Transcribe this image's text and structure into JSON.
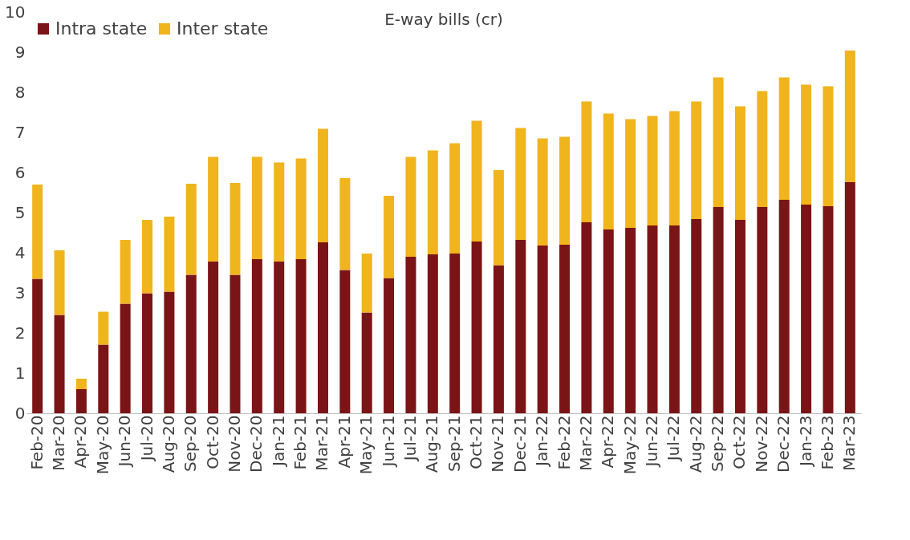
{
  "chart_data": {
    "type": "bar",
    "title": "E-way bills (cr)",
    "stacked": true,
    "legend": "top left",
    "grid": false,
    "categories": [
      "Feb-20",
      "Mar-20",
      "Apr-20",
      "May-20",
      "Jun-20",
      "Jul-20",
      "Aug-20",
      "Sep-20",
      "Oct-20",
      "Nov-20",
      "Dec-20",
      "Jan-21",
      "Feb-21",
      "Mar-21",
      "Apr-21",
      "May-21",
      "Jun-21",
      "Jul-21",
      "Aug-21",
      "Sep-21",
      "Oct-21",
      "Nov-21",
      "Dec-21",
      "Jan-22",
      "Feb-22",
      "Mar-22",
      "Apr-22",
      "May-22",
      "Jun-22",
      "Jul-22",
      "Aug-22",
      "Sep-22",
      "Oct-22",
      "Nov-22",
      "Dec-22",
      "Jan-23",
      "Feb-23",
      "Mar-23"
    ],
    "ylim": [
      0,
      10
    ],
    "yticks": [
      0,
      1,
      2,
      3,
      4,
      5,
      6,
      7,
      8,
      9,
      10
    ],
    "series": [
      {
        "name": "Intra state",
        "color": "#7b1416",
        "values": [
          3.35,
          2.45,
          0.6,
          1.71,
          2.73,
          2.99,
          3.03,
          3.45,
          3.78,
          3.45,
          3.84,
          3.78,
          3.84,
          4.26,
          3.57,
          2.51,
          3.37,
          3.9,
          3.96,
          3.98,
          4.28,
          3.69,
          4.32,
          4.18,
          4.2,
          4.76,
          4.58,
          4.62,
          4.68,
          4.68,
          4.84,
          5.14,
          4.82,
          5.14,
          5.32,
          5.2,
          5.16,
          5.76
        ]
      },
      {
        "name": "Inter state",
        "color": "#f0b41c",
        "values": [
          2.35,
          1.61,
          0.26,
          0.82,
          1.59,
          1.83,
          1.87,
          2.27,
          2.61,
          2.29,
          2.55,
          2.47,
          2.51,
          2.83,
          2.29,
          1.47,
          2.05,
          2.49,
          2.59,
          2.75,
          3.01,
          2.37,
          2.79,
          2.67,
          2.69,
          3.01,
          2.89,
          2.71,
          2.73,
          2.85,
          2.93,
          3.23,
          2.83,
          2.89,
          3.05,
          2.99,
          2.99,
          3.28
        ]
      }
    ]
  }
}
